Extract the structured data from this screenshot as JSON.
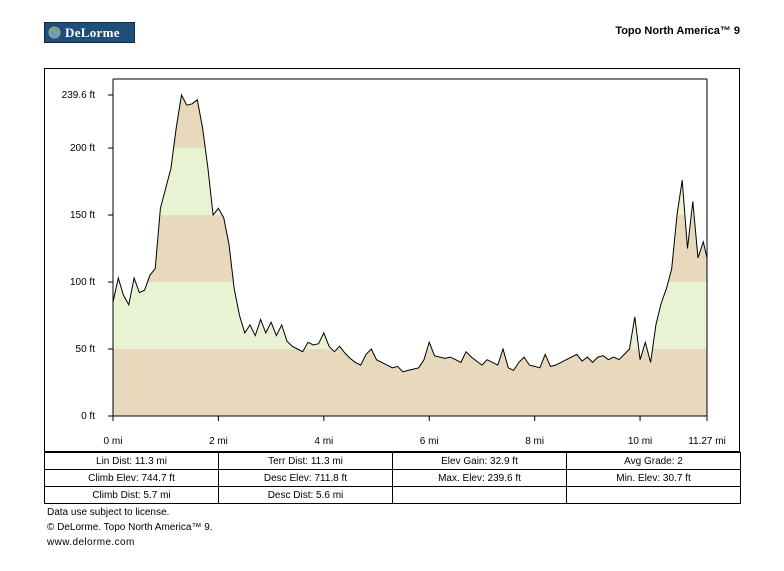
{
  "header": {
    "logo_text": "DeLorme",
    "product_title": "Topo North America™ 9"
  },
  "colors": {
    "band_tan": "#e8d9bd",
    "band_green": "#e9f3d3",
    "logo_bg": "#1f4e79",
    "line": "#000000"
  },
  "chart_data": {
    "type": "area",
    "xlabel": "",
    "ylabel": "",
    "xlim": [
      0,
      11.27
    ],
    "ylim": [
      0,
      239.6
    ],
    "x_ticks": [
      0,
      2,
      4,
      6,
      8,
      10,
      11.27
    ],
    "x_tick_labels": [
      "0 mi",
      "2 mi",
      "4 mi",
      "6 mi",
      "8 mi",
      "10 mi",
      "11.27 mi"
    ],
    "y_ticks": [
      0,
      50,
      100,
      150,
      200,
      239.6
    ],
    "y_tick_labels": [
      "0 ft",
      "50 ft",
      "100 ft",
      "150 ft",
      "200 ft",
      "239.6 ft"
    ],
    "bands": [
      {
        "from": 0,
        "to": 50,
        "color": "tan"
      },
      {
        "from": 50,
        "to": 100,
        "color": "green"
      },
      {
        "from": 100,
        "to": 150,
        "color": "tan"
      },
      {
        "from": 150,
        "to": 200,
        "color": "green"
      },
      {
        "from": 200,
        "to": 250,
        "color": "tan"
      }
    ],
    "grid": false,
    "legend": "none",
    "series": [
      {
        "x": [
          0,
          0.1,
          0.2,
          0.3,
          0.4,
          0.5,
          0.6,
          0.7,
          0.8,
          0.9,
          1.0,
          1.1,
          1.2,
          1.3,
          1.4,
          1.5,
          1.6,
          1.7,
          1.8,
          1.9,
          2.0,
          2.1,
          2.2,
          2.3,
          2.4,
          2.5,
          2.6,
          2.7,
          2.8,
          2.9,
          3.0,
          3.1,
          3.2,
          3.3,
          3.4,
          3.5,
          3.6,
          3.7,
          3.8,
          3.9,
          4.0,
          4.1,
          4.2,
          4.3,
          4.4,
          4.5,
          4.6,
          4.7,
          4.8,
          4.9,
          5.0,
          5.1,
          5.2,
          5.3,
          5.4,
          5.5,
          5.6,
          5.7,
          5.8,
          5.9,
          6.0,
          6.1,
          6.2,
          6.3,
          6.4,
          6.5,
          6.6,
          6.7,
          6.8,
          6.9,
          7.0,
          7.1,
          7.2,
          7.3,
          7.4,
          7.5,
          7.6,
          7.7,
          7.8,
          7.9,
          8.0,
          8.1,
          8.2,
          8.3,
          8.4,
          8.5,
          8.6,
          8.7,
          8.8,
          8.9,
          9.0,
          9.1,
          9.2,
          9.3,
          9.4,
          9.5,
          9.6,
          9.7,
          9.8,
          9.9,
          10.0,
          10.1,
          10.2,
          10.3,
          10.4,
          10.5,
          10.6,
          10.7,
          10.8,
          10.9,
          11.0,
          11.1,
          11.2,
          11.27
        ],
        "y": [
          85,
          103,
          90,
          83,
          103,
          92,
          94,
          105,
          110,
          155,
          170,
          185,
          215,
          239.6,
          232,
          233,
          236,
          215,
          185,
          150,
          155,
          148,
          128,
          95,
          75,
          62,
          68,
          60,
          72,
          62,
          70,
          60,
          68,
          56,
          52,
          50,
          48,
          55,
          53,
          54,
          62,
          52,
          48,
          52,
          47,
          43,
          40,
          38,
          46,
          50,
          42,
          40,
          38,
          36,
          37,
          33,
          34,
          35,
          36,
          42,
          55,
          45,
          44,
          43,
          44,
          42,
          40,
          48,
          44,
          41,
          38,
          42,
          40,
          38,
          50,
          36,
          34,
          40,
          44,
          38,
          37,
          36,
          46,
          37,
          38,
          40,
          42,
          44,
          46,
          41,
          44,
          40,
          44,
          45,
          42,
          44,
          42,
          46,
          50,
          74,
          42,
          55,
          40,
          68,
          84,
          95,
          110,
          150,
          176,
          125,
          160,
          118,
          130,
          118
        ]
      }
    ]
  },
  "stats": {
    "row1": [
      "Lin Dist:  11.3 mi",
      "Terr Dist:  11.3 mi",
      "Elev Gain:  32.9 ft",
      "Avg Grade:  2"
    ],
    "row2": [
      "Climb Elev:  744.7 ft",
      "Desc Elev:  711.8 ft",
      "Max. Elev:  239.6 ft",
      "Min. Elev:  30.7 ft"
    ],
    "row3": [
      "Climb Dist:  5.7 mi",
      "Desc Dist:  5.6 mi",
      "",
      ""
    ]
  },
  "footer": {
    "line1": "Data use subject to license.",
    "line2": "© DeLorme. Topo North America™ 9.",
    "line3": "www.delorme.com"
  }
}
